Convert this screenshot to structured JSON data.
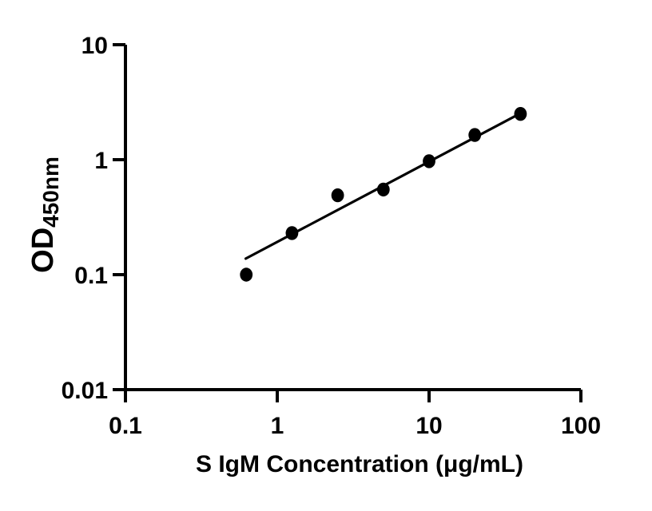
{
  "figure": {
    "background_color": "#ffffff"
  },
  "chart_data": {
    "type": "scatter",
    "title": "",
    "xlabel": "S IgM Concentration (μg/mL)",
    "ylabel_main": "OD",
    "ylabel_sub": "450nm",
    "ylabel_full": "OD450nm",
    "x_scale": "log10",
    "y_scale": "log10",
    "xlim": [
      0.1,
      100
    ],
    "ylim": [
      0.01,
      10
    ],
    "grid": false,
    "legend": "none",
    "x_ticks": [
      {
        "value": 0.1,
        "label": "0.1"
      },
      {
        "value": 1,
        "label": "1"
      },
      {
        "value": 10,
        "label": "10"
      },
      {
        "value": 100,
        "label": "100"
      }
    ],
    "y_ticks": [
      {
        "value": 10,
        "label": "10"
      },
      {
        "value": 1,
        "label": "1"
      },
      {
        "value": 0.1,
        "label": "0.1"
      },
      {
        "value": 0.01,
        "label": "0.01"
      }
    ],
    "points": [
      {
        "x": 0.625,
        "y": 0.1
      },
      {
        "x": 1.25,
        "y": 0.23
      },
      {
        "x": 2.5,
        "y": 0.49
      },
      {
        "x": 5,
        "y": 0.55
      },
      {
        "x": 10,
        "y": 0.97
      },
      {
        "x": 20,
        "y": 1.64
      },
      {
        "x": 40,
        "y": 2.5
      }
    ],
    "fit_line": {
      "x1": 0.62,
      "y1": 0.138,
      "x2": 40,
      "y2": 2.53
    },
    "marker_color": "#000000",
    "line_color": "#000000",
    "axis_color": "#000000"
  }
}
